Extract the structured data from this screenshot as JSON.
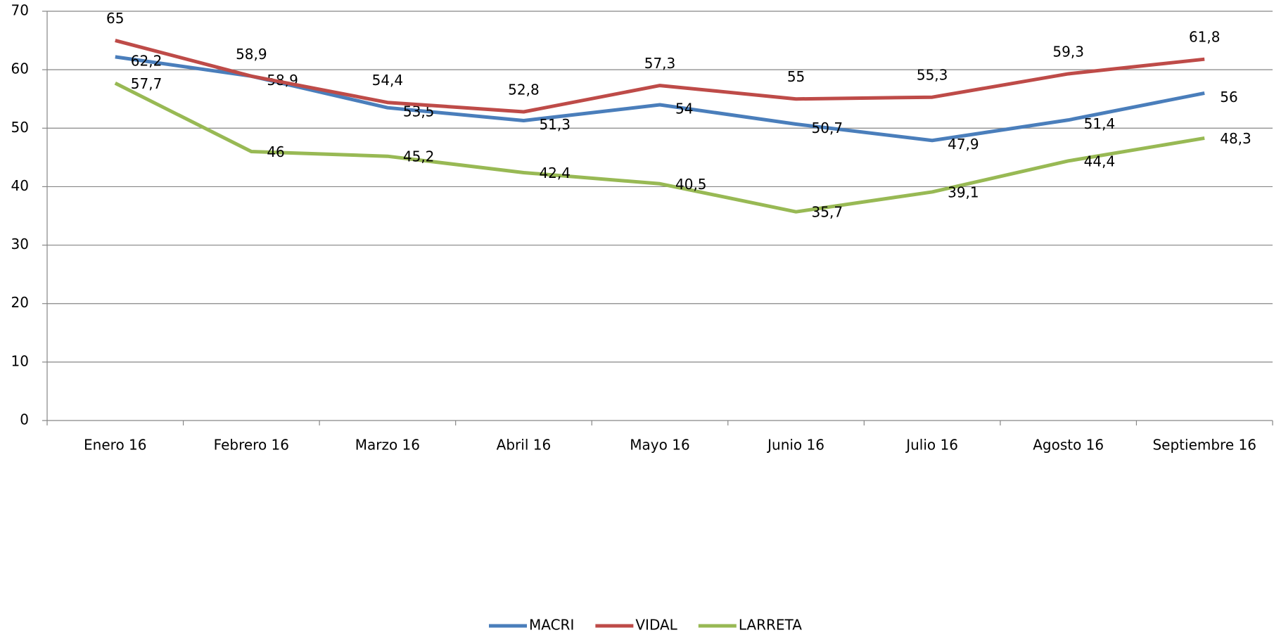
{
  "chart_data": {
    "type": "line",
    "categories": [
      "Enero 16",
      "Febrero 16",
      "Marzo 16",
      "Abril 16",
      "Mayo 16",
      "Junio 16",
      "Julio 16",
      "Agosto 16",
      "Septiembre 16"
    ],
    "series": [
      {
        "name": "MACRI",
        "color": "#4a7ebb",
        "values": [
          62.2,
          58.9,
          53.5,
          51.3,
          54,
          50.7,
          47.9,
          51.4,
          56
        ],
        "value_labels": [
          "62,2",
          "58,9",
          "53,5",
          "51,3",
          "54",
          "50,7",
          "47,9",
          "51,4",
          "56"
        ]
      },
      {
        "name": "VIDAL",
        "color": "#be4b48",
        "values": [
          65,
          58.9,
          54.4,
          52.8,
          57.3,
          55,
          55.3,
          59.3,
          61.8
        ],
        "value_labels": [
          "65",
          "58,9",
          "54,4",
          "52,8",
          "57,3",
          "55",
          "55,3",
          "59,3",
          "61,8"
        ]
      },
      {
        "name": "LARRETA",
        "color": "#98b954",
        "values": [
          57.7,
          46,
          45.2,
          42.4,
          40.5,
          35.7,
          39.1,
          44.4,
          48.3
        ],
        "value_labels": [
          "57,7",
          "46",
          "45,2",
          "42,4",
          "40,5",
          "35,7",
          "39,1",
          "44,4",
          "48,3"
        ]
      }
    ],
    "ylim": [
      0,
      70
    ],
    "yticks": [
      0,
      10,
      20,
      30,
      40,
      50,
      60,
      70
    ],
    "grid": true,
    "legend": "bottom"
  }
}
